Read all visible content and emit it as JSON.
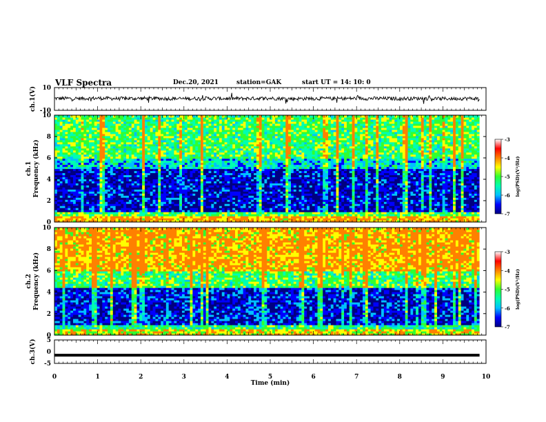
{
  "header": {
    "title": "VLF Spectra",
    "date": "Dec.20, 2021",
    "station": "station=GAK",
    "start_ut": "start  UT =   14: 10: 0"
  },
  "colors": {
    "colormap": [
      "#000080",
      "#0000ff",
      "#00c0ff",
      "#00ffb0",
      "#30ff30",
      "#ffff00",
      "#ff8000",
      "#ff0000",
      "#ffffff"
    ],
    "trace": "#000000",
    "background": "#ffffff"
  },
  "chart_data": [
    {
      "type": "line",
      "ylabel": "ch.1(V)",
      "ylim": [
        -10,
        10
      ],
      "yticks": [
        "10",
        "-10"
      ],
      "xlim": [
        0,
        10
      ],
      "x": [
        0,
        0.5,
        1,
        1.5,
        2,
        2.5,
        3,
        3.5,
        4,
        4.5,
        5,
        5.5,
        6,
        6.5,
        7,
        7.5,
        8,
        8.5,
        9,
        9.5,
        9.85
      ],
      "y": [
        0.5,
        0.4,
        0.6,
        0.3,
        0.5,
        0.4,
        0.2,
        0.5,
        0.3,
        0.4,
        0.6,
        0.2,
        0.4,
        0.3,
        0.5,
        0.4,
        0.3,
        0.5,
        0.2,
        0.4,
        0.3
      ]
    },
    {
      "type": "heatmap",
      "ylabel": "ch.1\nFrequency  (kHz)",
      "yticks": [
        "0",
        "2",
        "4",
        "6",
        "8",
        "10"
      ],
      "ylim": [
        0,
        10
      ],
      "xlim": [
        0,
        10
      ],
      "colorbar": {
        "label": "log(PSD)(V²/Hz)",
        "ticks": [
          "-3",
          "-4",
          "-5",
          "-6",
          "-7"
        ],
        "range": [
          -7,
          -3
        ]
      },
      "psd_by_band": [
        {
          "f_khz": [
            0,
            0.6
          ],
          "log_psd": -3.4
        },
        {
          "f_khz": [
            0.6,
            1.0
          ],
          "log_psd": -4.5
        },
        {
          "f_khz": [
            1.0,
            5.0
          ],
          "log_psd": -6.4
        },
        {
          "f_khz": [
            5.0,
            6.0
          ],
          "log_psd": -5.3
        },
        {
          "f_khz": [
            6.0,
            10.0
          ],
          "log_psd": -4.6
        }
      ]
    },
    {
      "type": "heatmap",
      "ylabel": "ch.2\nFrequency  (kHz)",
      "yticks": [
        "0",
        "2",
        "4",
        "6",
        "8",
        "10"
      ],
      "ylim": [
        0,
        10
      ],
      "xlim": [
        0,
        10
      ],
      "colorbar": {
        "label": "log(PSD)(V²/Hz)",
        "ticks": [
          "-3",
          "-4",
          "-5",
          "-6",
          "-7"
        ],
        "range": [
          -7,
          -3
        ]
      },
      "psd_by_band": [
        {
          "f_khz": [
            0,
            0.6
          ],
          "log_psd": -3.8
        },
        {
          "f_khz": [
            0.6,
            1.0
          ],
          "log_psd": -4.8
        },
        {
          "f_khz": [
            1.0,
            4.5
          ],
          "log_psd": -6.3
        },
        {
          "f_khz": [
            4.5,
            6.0
          ],
          "log_psd": -4.6
        },
        {
          "f_khz": [
            6.0,
            10.0
          ],
          "log_psd": -3.5
        }
      ]
    },
    {
      "type": "line",
      "ylabel": "ch.3(V)",
      "ylim": [
        -5,
        5
      ],
      "yticks": [
        "5",
        "0",
        "-5"
      ],
      "xlim": [
        0,
        10
      ],
      "x": [
        0,
        9.85
      ],
      "y": [
        -1.5,
        -1.5
      ]
    }
  ],
  "xaxis": {
    "label": "Time  (min)",
    "ticks": [
      "0",
      "1",
      "2",
      "3",
      "4",
      "5",
      "6",
      "7",
      "8",
      "9",
      "10"
    ]
  }
}
